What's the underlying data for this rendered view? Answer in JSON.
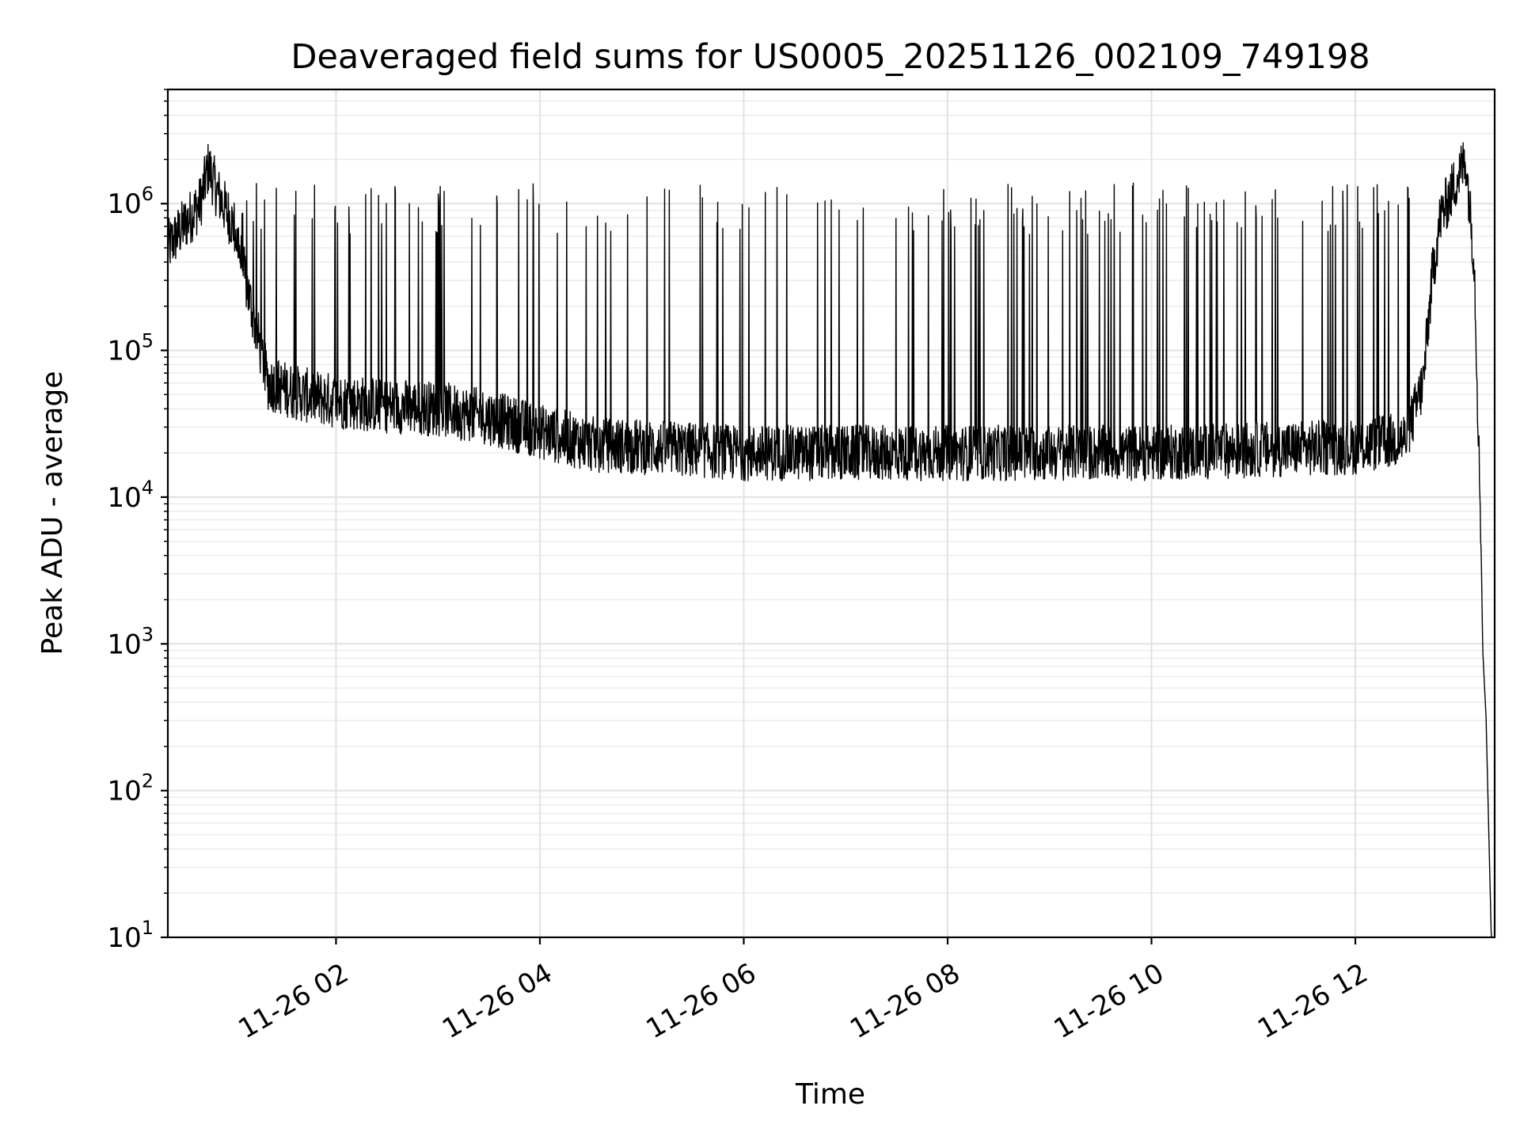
{
  "chart_data": {
    "type": "line",
    "title": "Deaveraged field sums for US0005_20251126_002109_749198",
    "xlabel": "Time",
    "ylabel": "Peak ADU - average",
    "yscale": "log",
    "ylim": [
      10,
      6000000
    ],
    "xlim": [
      "2025-11-26 00:21",
      "2025-11-26 13:22"
    ],
    "grid": true,
    "x_ticks": [
      {
        "value": "2025-11-26 02:00",
        "label": "11-26 02"
      },
      {
        "value": "2025-11-26 04:00",
        "label": "11-26 04"
      },
      {
        "value": "2025-11-26 06:00",
        "label": "11-26 06"
      },
      {
        "value": "2025-11-26 08:00",
        "label": "11-26 08"
      },
      {
        "value": "2025-11-26 10:00",
        "label": "11-26 10"
      },
      {
        "value": "2025-11-26 12:00",
        "label": "11-26 12"
      }
    ],
    "y_ticks": [
      {
        "value": 10,
        "base": "10",
        "exp": "1"
      },
      {
        "value": 100,
        "base": "10",
        "exp": "2"
      },
      {
        "value": 1000,
        "base": "10",
        "exp": "3"
      },
      {
        "value": 10000,
        "base": "10",
        "exp": "4"
      },
      {
        "value": 100000,
        "base": "10",
        "exp": "5"
      },
      {
        "value": 1000000,
        "base": "10",
        "exp": "6"
      }
    ],
    "series": [
      {
        "color": "#000000",
        "points": [
          [
            "2025-11-26 00:21",
            500000
          ],
          [
            "2025-11-26 00:30",
            700000
          ],
          [
            "2025-11-26 00:40",
            1000000
          ],
          [
            "2025-11-26 00:45",
            1800000
          ],
          [
            "2025-11-26 00:50",
            1200000
          ],
          [
            "2025-11-26 01:00",
            700000
          ],
          [
            "2025-11-26 01:10",
            200000
          ],
          [
            "2025-11-26 01:20",
            60000
          ],
          [
            "2025-11-26 01:40",
            50000
          ],
          [
            "2025-11-26 02:00",
            45000
          ],
          [
            "2025-11-26 02:30",
            42000
          ],
          [
            "2025-11-26 03:00",
            40000
          ],
          [
            "2025-11-26 03:30",
            35000
          ],
          [
            "2025-11-26 04:00",
            28000
          ],
          [
            "2025-11-26 04:30",
            23000
          ],
          [
            "2025-11-26 05:00",
            22000
          ],
          [
            "2025-11-26 06:00",
            20000
          ],
          [
            "2025-11-26 07:00",
            20000
          ],
          [
            "2025-11-26 08:00",
            20000
          ],
          [
            "2025-11-26 09:00",
            20000
          ],
          [
            "2025-11-26 10:00",
            20000
          ],
          [
            "2025-11-26 11:00",
            21000
          ],
          [
            "2025-11-26 12:00",
            22000
          ],
          [
            "2025-11-26 12:30",
            25000
          ],
          [
            "2025-11-26 12:40",
            60000
          ],
          [
            "2025-11-26 12:45",
            300000
          ],
          [
            "2025-11-26 12:50",
            800000
          ],
          [
            "2025-11-26 13:00",
            1500000
          ],
          [
            "2025-11-26 13:05",
            2000000
          ],
          [
            "2025-11-26 13:10",
            400000
          ],
          [
            "2025-11-26 13:14",
            5000
          ],
          [
            "2025-11-26 13:15",
            900
          ],
          [
            "2025-11-26 13:17",
            300
          ],
          [
            "2025-11-26 13:20",
            10
          ]
        ]
      }
    ],
    "spike_level": 1000000,
    "baseline_noise": "dense fluctuations around the trend with frequent spikes up to about 10^6"
  }
}
